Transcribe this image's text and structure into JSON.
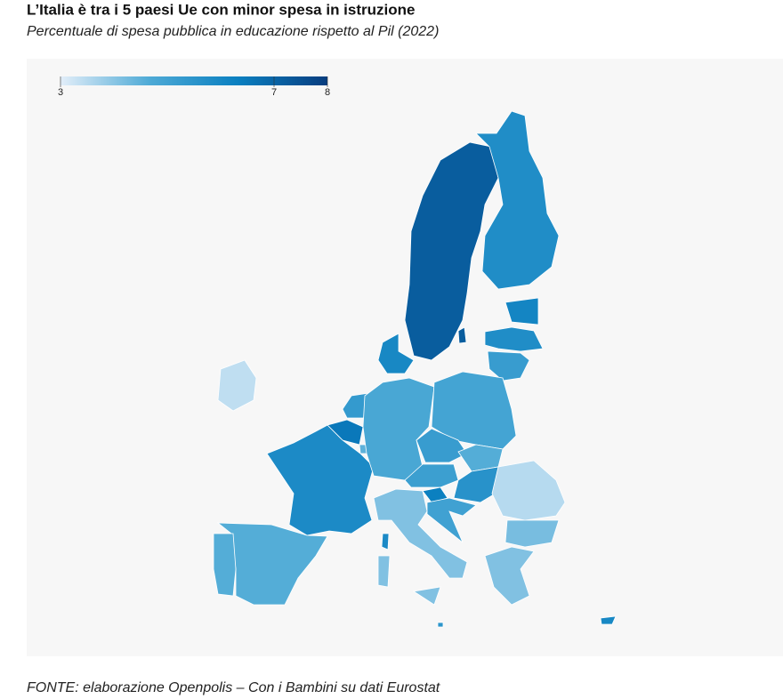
{
  "chart_data": {
    "type": "choropleth",
    "title": "L’Italia è tra i 5 paesi Ue con minor spesa in istruzione",
    "subtitle": "Percentuale di spesa pubblica in educazione rispetto al Pil (2022)",
    "source": "FONTE: elaborazione Openpolis – Con i Bambini su dati Eurostat",
    "clim": [
      3,
      8
    ],
    "cticks": [
      3,
      7,
      8
    ],
    "color_stops": [
      "#e3eef9",
      "#4eaad6",
      "#0a7fc0",
      "#083d7f"
    ],
    "values": [
      7.2,
      5.8,
      6.1,
      5.8,
      5.2,
      6.0,
      3.4,
      5.3,
      6.5,
      4.5,
      5.9,
      4.8,
      4.9,
      5.2,
      4.6,
      5.1,
      5.6,
      6.3,
      5.0,
      3.5,
      4.2,
      4.1,
      4.1,
      4.6,
      4.6,
      6.0,
      5.5
    ]
  }
}
